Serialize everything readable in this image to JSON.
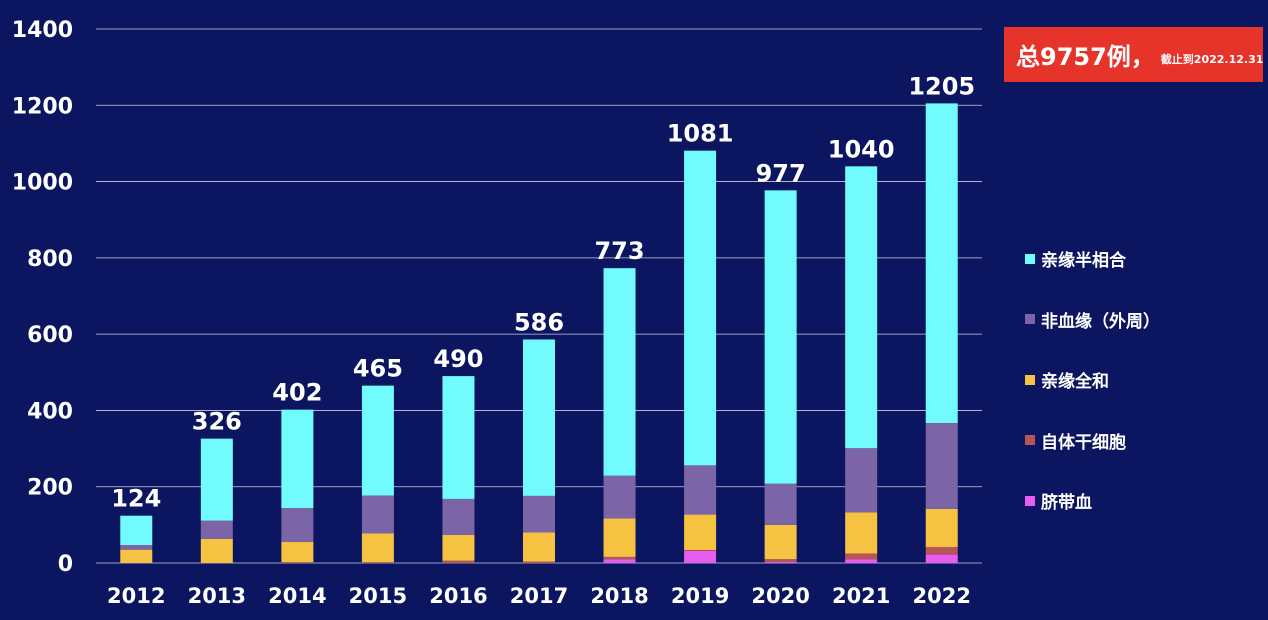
{
  "chart_data": {
    "type": "bar",
    "stacked": true,
    "categories": [
      "2012",
      "2013",
      "2014",
      "2015",
      "2016",
      "2017",
      "2018",
      "2019",
      "2020",
      "2021",
      "2022"
    ],
    "ylim": [
      0,
      1400
    ],
    "yticks": [
      "0",
      "200",
      "400",
      "600",
      "800",
      "1000",
      "1200",
      "1400"
    ],
    "grid": true,
    "legend_position": "right",
    "series": [
      {
        "name": "脐带血",
        "color": "#e85df0",
        "values": [
          0,
          0,
          0,
          0,
          0,
          0,
          10,
          32,
          3,
          10,
          22
        ]
      },
      {
        "name": "自体干细胞",
        "color": "#b85555",
        "values": [
          0,
          0,
          2,
          2,
          6,
          4,
          6,
          2,
          7,
          15,
          20
        ]
      },
      {
        "name": "亲缘全和",
        "color": "#f5c242",
        "values": [
          35,
          63,
          53,
          76,
          68,
          76,
          101,
          93,
          90,
          108,
          100
        ]
      },
      {
        "name": "非血缘（外周）",
        "color": "#7b65a6",
        "values": [
          12,
          48,
          89,
          99,
          94,
          96,
          112,
          129,
          108,
          168,
          225
        ]
      },
      {
        "name": "亲缘半相合",
        "color": "#72fbfd",
        "values": [
          77,
          215,
          258,
          288,
          322,
          410,
          544,
          825,
          769,
          739,
          838
        ]
      }
    ],
    "totals": [
      "124",
      "326",
      "402",
      "465",
      "490",
      "586",
      "773",
      "1081",
      "977",
      "1040",
      "1205"
    ]
  },
  "badge": {
    "main": "总9757例，",
    "sub": "截止到2022.12.31"
  }
}
